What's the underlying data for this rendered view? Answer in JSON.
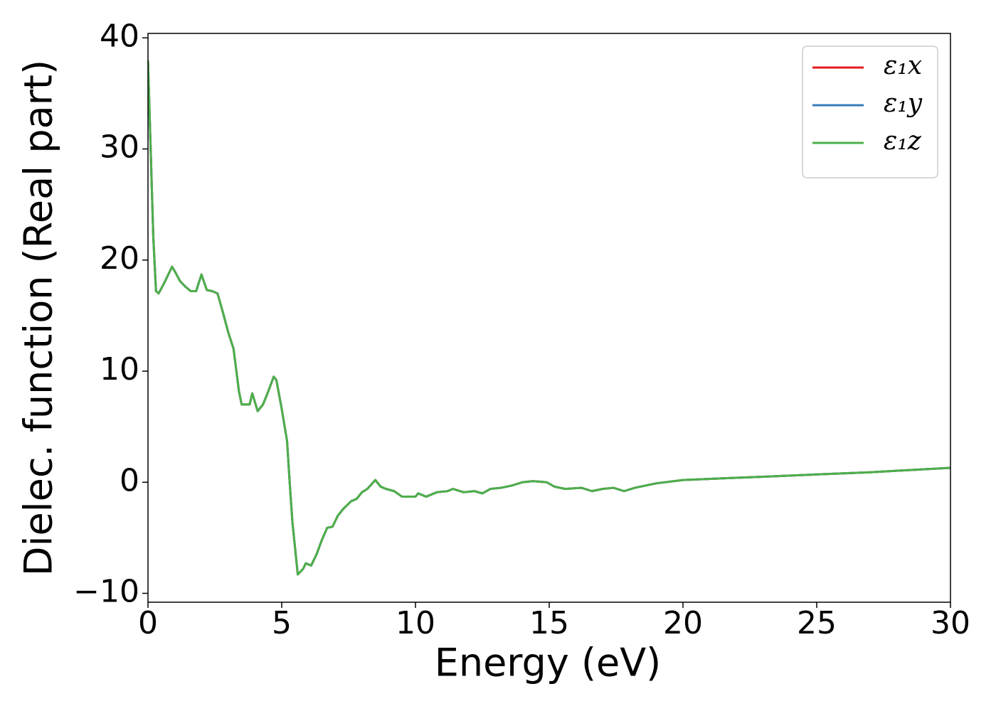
{
  "chart_data": {
    "type": "line",
    "xlabel": "Energy (eV)",
    "ylabel": "Dielec. function (Real part)",
    "x": [
      0,
      0.1,
      0.2,
      0.3,
      0.4,
      0.6,
      0.9,
      1.0,
      1.2,
      1.4,
      1.6,
      1.8,
      2.0,
      2.2,
      2.4,
      2.6,
      2.8,
      3.0,
      3.2,
      3.4,
      3.5,
      3.8,
      3.9,
      4.0,
      4.1,
      4.3,
      4.5,
      4.7,
      4.8,
      5.0,
      5.2,
      5.3,
      5.4,
      5.6,
      5.8,
      5.9,
      6.1,
      6.3,
      6.5,
      6.7,
      6.9,
      7.1,
      7.3,
      7.6,
      7.8,
      8.0,
      8.2,
      8.5,
      8.7,
      8.9,
      9.2,
      9.5,
      9.8,
      10.0,
      10.1,
      10.4,
      10.8,
      11.2,
      11.4,
      11.8,
      12.2,
      12.5,
      12.8,
      13.2,
      13.6,
      14.0,
      14.4,
      14.9,
      15.2,
      15.6,
      16.2,
      16.6,
      17.0,
      17.4,
      17.8,
      18.2,
      19.0,
      20.0,
      22.0,
      23.0,
      25.0,
      27.0,
      30.0
    ],
    "series": [
      {
        "name": "ε₁x",
        "color": "#e41a1c",
        "values": [
          38,
          30,
          22,
          17.2,
          17.0,
          17.9,
          19.4,
          19.0,
          18.1,
          17.6,
          17.2,
          17.2,
          18.7,
          17.3,
          17.2,
          17.0,
          15.3,
          13.5,
          12.0,
          8.2,
          7.0,
          7.0,
          8.0,
          7.2,
          6.4,
          7.0,
          8.2,
          9.5,
          9.2,
          6.6,
          3.7,
          -0.1,
          -3.6,
          -8.3,
          -7.8,
          -7.3,
          -7.5,
          -6.5,
          -5.2,
          -4.1,
          -4.0,
          -3.0,
          -2.4,
          -1.7,
          -1.5,
          -0.9,
          -0.6,
          0.2,
          -0.4,
          -0.6,
          -0.8,
          -1.3,
          -1.3,
          -1.3,
          -1.0,
          -1.3,
          -0.9,
          -0.8,
          -0.6,
          -0.9,
          -0.8,
          -1.0,
          -0.6,
          -0.5,
          -0.3,
          0.0,
          0.1,
          0.0,
          -0.4,
          -0.6,
          -0.5,
          -0.8,
          -0.6,
          -0.5,
          -0.8,
          -0.5,
          -0.1,
          0.2,
          0.4,
          0.5,
          0.7,
          0.9,
          1.3
        ]
      },
      {
        "name": "ε₁y",
        "color": "#377eb8",
        "values": [
          38,
          30,
          22,
          17.2,
          17.0,
          17.9,
          19.4,
          19.0,
          18.1,
          17.6,
          17.2,
          17.2,
          18.7,
          17.3,
          17.2,
          17.0,
          15.3,
          13.5,
          12.0,
          8.2,
          7.0,
          7.0,
          8.0,
          7.2,
          6.4,
          7.0,
          8.2,
          9.5,
          9.2,
          6.6,
          3.7,
          -0.1,
          -3.6,
          -8.3,
          -7.8,
          -7.3,
          -7.5,
          -6.5,
          -5.2,
          -4.1,
          -4.0,
          -3.0,
          -2.4,
          -1.7,
          -1.5,
          -0.9,
          -0.6,
          0.2,
          -0.4,
          -0.6,
          -0.8,
          -1.3,
          -1.3,
          -1.3,
          -1.0,
          -1.3,
          -0.9,
          -0.8,
          -0.6,
          -0.9,
          -0.8,
          -1.0,
          -0.6,
          -0.5,
          -0.3,
          0.0,
          0.1,
          0.0,
          -0.4,
          -0.6,
          -0.5,
          -0.8,
          -0.6,
          -0.5,
          -0.8,
          -0.5,
          -0.1,
          0.2,
          0.4,
          0.5,
          0.7,
          0.9,
          1.3
        ]
      },
      {
        "name": "ε₁z",
        "color": "#4daf4a",
        "values": [
          38,
          30,
          22,
          17.2,
          17.0,
          17.9,
          19.4,
          19.0,
          18.1,
          17.6,
          17.2,
          17.2,
          18.7,
          17.3,
          17.2,
          17.0,
          15.3,
          13.5,
          12.0,
          8.2,
          7.0,
          7.0,
          8.0,
          7.2,
          6.4,
          7.0,
          8.2,
          9.5,
          9.2,
          6.6,
          3.7,
          -0.1,
          -3.6,
          -8.3,
          -7.8,
          -7.3,
          -7.5,
          -6.5,
          -5.2,
          -4.1,
          -4.0,
          -3.0,
          -2.4,
          -1.7,
          -1.5,
          -0.9,
          -0.6,
          0.2,
          -0.4,
          -0.6,
          -0.8,
          -1.3,
          -1.3,
          -1.3,
          -1.0,
          -1.3,
          -0.9,
          -0.8,
          -0.6,
          -0.9,
          -0.8,
          -1.0,
          -0.6,
          -0.5,
          -0.3,
          0.0,
          0.1,
          0.0,
          -0.4,
          -0.6,
          -0.5,
          -0.8,
          -0.6,
          -0.5,
          -0.8,
          -0.5,
          -0.1,
          0.2,
          0.4,
          0.5,
          0.7,
          0.9,
          1.3
        ]
      }
    ],
    "xlim": [
      0,
      30
    ],
    "xticks": [
      0,
      5,
      10,
      15,
      20,
      25,
      30
    ],
    "ylim": [
      -10.8,
      40.4
    ],
    "yticks": [
      {
        "value": -10,
        "label": "−10"
      },
      0,
      10,
      20,
      30,
      40
    ],
    "grid": false,
    "legend": "upper right"
  }
}
